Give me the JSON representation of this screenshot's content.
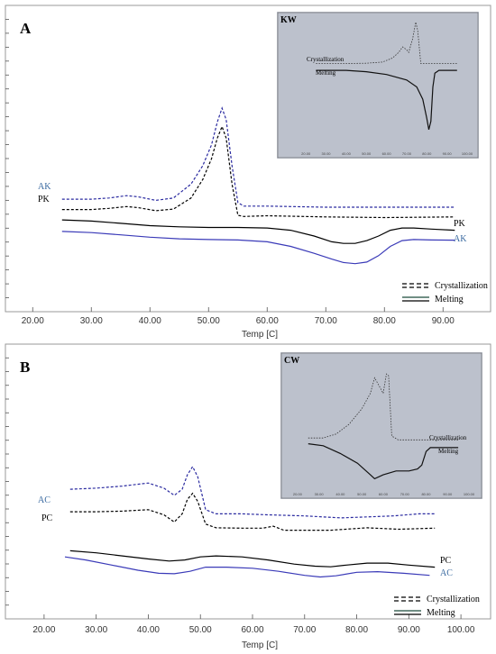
{
  "chart_data": [
    {
      "type": "line",
      "panel_label": "A",
      "xlabel": "Temp [C]",
      "xlim": [
        17.5,
        97.5
      ],
      "x_ticks": [
        "20.00",
        "30.00",
        "40.00",
        "50.00",
        "60.00",
        "70.00",
        "80.00",
        "90.00"
      ],
      "series": [
        {
          "name": "AK",
          "kind": "Crystallization",
          "color": "#2a2aa0",
          "dashed": true,
          "points": [
            [
              25,
              0.905
            ],
            [
              30,
              0.905
            ],
            [
              33,
              0.91
            ],
            [
              36,
              0.92
            ],
            [
              38,
              0.915
            ],
            [
              41,
              0.9
            ],
            [
              44,
              0.91
            ],
            [
              47,
              0.97
            ],
            [
              49,
              1.05
            ],
            [
              50.5,
              1.14
            ],
            [
              51.5,
              1.24
            ],
            [
              52.3,
              1.3
            ],
            [
              53,
              1.25
            ],
            [
              54,
              1.05
            ],
            [
              55,
              0.89
            ],
            [
              56,
              0.875
            ],
            [
              60,
              0.875
            ],
            [
              70,
              0.87
            ],
            [
              80,
              0.87
            ],
            [
              92,
              0.87
            ]
          ]
        },
        {
          "name": "PK",
          "kind": "Crystallization",
          "color": "#000000",
          "dashed": true,
          "points": [
            [
              25,
              0.86
            ],
            [
              30,
              0.86
            ],
            [
              33,
              0.865
            ],
            [
              36,
              0.873
            ],
            [
              38,
              0.868
            ],
            [
              41,
              0.855
            ],
            [
              44,
              0.862
            ],
            [
              47,
              0.91
            ],
            [
              49,
              0.99
            ],
            [
              50.5,
              1.08
            ],
            [
              51.5,
              1.17
            ],
            [
              52.3,
              1.22
            ],
            [
              53,
              1.17
            ],
            [
              54,
              0.97
            ],
            [
              55,
              0.835
            ],
            [
              56,
              0.83
            ],
            [
              60,
              0.833
            ],
            [
              70,
              0.828
            ],
            [
              80,
              0.825
            ],
            [
              92,
              0.828
            ]
          ]
        },
        {
          "name": "PK",
          "kind": "Melting",
          "color": "#000000",
          "dashed": false,
          "points": [
            [
              25,
              0.815
            ],
            [
              30,
              0.81
            ],
            [
              35,
              0.8
            ],
            [
              40,
              0.79
            ],
            [
              45,
              0.785
            ],
            [
              50,
              0.782
            ],
            [
              55,
              0.782
            ],
            [
              60,
              0.78
            ],
            [
              64,
              0.77
            ],
            [
              68,
              0.745
            ],
            [
              71,
              0.72
            ],
            [
              73,
              0.713
            ],
            [
              75,
              0.713
            ],
            [
              77,
              0.725
            ],
            [
              79,
              0.745
            ],
            [
              81,
              0.77
            ],
            [
              83,
              0.78
            ],
            [
              85,
              0.78
            ],
            [
              88,
              0.775
            ],
            [
              92,
              0.77
            ]
          ]
        },
        {
          "name": "AK",
          "kind": "Melting",
          "color": "#3a3ab8",
          "dashed": false,
          "points": [
            [
              25,
              0.765
            ],
            [
              30,
              0.76
            ],
            [
              35,
              0.75
            ],
            [
              40,
              0.74
            ],
            [
              45,
              0.733
            ],
            [
              50,
              0.73
            ],
            [
              55,
              0.728
            ],
            [
              60,
              0.72
            ],
            [
              64,
              0.7
            ],
            [
              68,
              0.67
            ],
            [
              71,
              0.645
            ],
            [
              73,
              0.63
            ],
            [
              75,
              0.625
            ],
            [
              77,
              0.632
            ],
            [
              79,
              0.66
            ],
            [
              81,
              0.7
            ],
            [
              83,
              0.725
            ],
            [
              85,
              0.73
            ],
            [
              88,
              0.728
            ],
            [
              92,
              0.727
            ]
          ]
        }
      ],
      "series_labels": [
        {
          "text": "AK",
          "color": "#3a6aa0"
        },
        {
          "text": "PK",
          "color": "#000000"
        },
        {
          "text": "PK",
          "color": "#000000"
        },
        {
          "text": "AK",
          "color": "#3a6aa0"
        }
      ],
      "legend": {
        "position": "bottom-right",
        "entries": [
          "Crystallization",
          "Melting"
        ]
      },
      "inset": {
        "title": "KW",
        "labels": [
          "Crystallization",
          "Melting"
        ],
        "x_ticks": [
          "20.00",
          "30.00",
          "40.00",
          "50.00",
          "60.00",
          "70.00",
          "80.00",
          "90.00",
          "100.00"
        ],
        "series": [
          {
            "kind": "Crystallization",
            "dashed": true,
            "points": [
              [
                25,
                0.62
              ],
              [
                40,
                0.62
              ],
              [
                50,
                0.622
              ],
              [
                58,
                0.63
              ],
              [
                63,
                0.66
              ],
              [
                66,
                0.7
              ],
              [
                68,
                0.74
              ],
              [
                70,
                0.72
              ],
              [
                71,
                0.7
              ],
              [
                73,
                0.8
              ],
              [
                74.5,
                0.92
              ],
              [
                75.5,
                0.86
              ],
              [
                77,
                0.62
              ],
              [
                80,
                0.62
              ],
              [
                95,
                0.62
              ]
            ]
          },
          {
            "kind": "Melting",
            "dashed": false,
            "points": [
              [
                25,
                0.57
              ],
              [
                40,
                0.57
              ],
              [
                50,
                0.56
              ],
              [
                60,
                0.54
              ],
              [
                70,
                0.5
              ],
              [
                75,
                0.45
              ],
              [
                78,
                0.36
              ],
              [
                80,
                0.22
              ],
              [
                81,
                0.14
              ],
              [
                82,
                0.2
              ],
              [
                83,
                0.45
              ],
              [
                84,
                0.55
              ],
              [
                86,
                0.57
              ],
              [
                95,
                0.57
              ]
            ]
          }
        ]
      }
    },
    {
      "type": "line",
      "panel_label": "B",
      "xlabel": "Temp [C]",
      "xlim": [
        15,
        105
      ],
      "x_ticks": [
        "20.00",
        "30.00",
        "40.00",
        "50.00",
        "60.00",
        "70.00",
        "80.00",
        "90.00",
        "100.00"
      ],
      "series": [
        {
          "name": "AC",
          "kind": "Crystallization",
          "color": "#2a2aa0",
          "dashed": true,
          "points": [
            [
              25,
              0.9
            ],
            [
              30,
              0.905
            ],
            [
              35,
              0.915
            ],
            [
              40,
              0.93
            ],
            [
              43,
              0.905
            ],
            [
              45,
              0.87
            ],
            [
              46.5,
              0.9
            ],
            [
              47.5,
              0.97
            ],
            [
              48.5,
              1.01
            ],
            [
              49.5,
              0.96
            ],
            [
              51,
              0.8
            ],
            [
              53,
              0.78
            ],
            [
              58,
              0.78
            ],
            [
              63,
              0.775
            ],
            [
              70,
              0.77
            ],
            [
              77,
              0.76
            ],
            [
              82,
              0.765
            ],
            [
              87,
              0.77
            ],
            [
              92,
              0.78
            ],
            [
              95,
              0.78
            ]
          ]
        },
        {
          "name": "PC",
          "kind": "Crystallization",
          "color": "#000000",
          "dashed": true,
          "points": [
            [
              25,
              0.79
            ],
            [
              30,
              0.79
            ],
            [
              35,
              0.793
            ],
            [
              40,
              0.8
            ],
            [
              43,
              0.775
            ],
            [
              45,
              0.74
            ],
            [
              46.5,
              0.78
            ],
            [
              47.5,
              0.85
            ],
            [
              48.5,
              0.88
            ],
            [
              49.5,
              0.84
            ],
            [
              51,
              0.73
            ],
            [
              53,
              0.712
            ],
            [
              58,
              0.71
            ],
            [
              62,
              0.71
            ],
            [
              64,
              0.72
            ],
            [
              66,
              0.7
            ],
            [
              70,
              0.7
            ],
            [
              75,
              0.7
            ],
            [
              82,
              0.712
            ],
            [
              88,
              0.705
            ],
            [
              95,
              0.71
            ]
          ]
        },
        {
          "name": "PC",
          "kind": "Melting",
          "color": "#000000",
          "dashed": false,
          "points": [
            [
              25,
              0.6
            ],
            [
              30,
              0.59
            ],
            [
              35,
              0.575
            ],
            [
              40,
              0.56
            ],
            [
              44,
              0.55
            ],
            [
              47,
              0.555
            ],
            [
              50,
              0.57
            ],
            [
              53,
              0.575
            ],
            [
              58,
              0.57
            ],
            [
              63,
              0.555
            ],
            [
              68,
              0.535
            ],
            [
              72,
              0.525
            ],
            [
              75,
              0.522
            ],
            [
              78,
              0.53
            ],
            [
              82,
              0.54
            ],
            [
              86,
              0.54
            ],
            [
              90,
              0.53
            ],
            [
              95,
              0.52
            ]
          ]
        },
        {
          "name": "AC",
          "kind": "Melting",
          "color": "#3a3ab8",
          "dashed": false,
          "points": [
            [
              24,
              0.57
            ],
            [
              28,
              0.555
            ],
            [
              33,
              0.53
            ],
            [
              38,
              0.505
            ],
            [
              42,
              0.49
            ],
            [
              45,
              0.488
            ],
            [
              48,
              0.5
            ],
            [
              51,
              0.52
            ],
            [
              55,
              0.52
            ],
            [
              60,
              0.515
            ],
            [
              65,
              0.5
            ],
            [
              70,
              0.48
            ],
            [
              73,
              0.472
            ],
            [
              76,
              0.478
            ],
            [
              80,
              0.495
            ],
            [
              84,
              0.498
            ],
            [
              89,
              0.49
            ],
            [
              94,
              0.48
            ]
          ]
        }
      ],
      "series_labels": [
        {
          "text": "AC",
          "color": "#3a6aa0"
        },
        {
          "text": "PC",
          "color": "#000000"
        },
        {
          "text": "PC",
          "color": "#000000"
        },
        {
          "text": "AC",
          "color": "#3a6aa0"
        }
      ],
      "legend": {
        "position": "bottom-right",
        "entries": [
          "Crystallization",
          "Melting"
        ]
      },
      "inset": {
        "title": "CW",
        "labels": [
          "Crystallization",
          "Melting"
        ],
        "x_ticks": [
          "20.00",
          "30.00",
          "40.00",
          "50.00",
          "60.00",
          "70.00",
          "80.00",
          "90.00",
          "100.00"
        ],
        "series": [
          {
            "kind": "Crystallization",
            "dashed": true,
            "points": [
              [
                25,
                0.55
              ],
              [
                32,
                0.55
              ],
              [
                38,
                0.57
              ],
              [
                44,
                0.62
              ],
              [
                50,
                0.7
              ],
              [
                54,
                0.78
              ],
              [
                56,
                0.86
              ],
              [
                58,
                0.82
              ],
              [
                60,
                0.78
              ],
              [
                61.5,
                0.88
              ],
              [
                62.5,
                0.87
              ],
              [
                64,
                0.56
              ],
              [
                67,
                0.54
              ],
              [
                75,
                0.54
              ],
              [
                90,
                0.54
              ],
              [
                95,
                0.54
              ]
            ]
          },
          {
            "kind": "Melting",
            "dashed": false,
            "points": [
              [
                25,
                0.52
              ],
              [
                32,
                0.51
              ],
              [
                40,
                0.47
              ],
              [
                48,
                0.42
              ],
              [
                54,
                0.36
              ],
              [
                56,
                0.34
              ],
              [
                60,
                0.36
              ],
              [
                66,
                0.38
              ],
              [
                72,
                0.38
              ],
              [
                76,
                0.39
              ],
              [
                78,
                0.41
              ],
              [
                80,
                0.48
              ],
              [
                82,
                0.5
              ],
              [
                90,
                0.5
              ],
              [
                95,
                0.5
              ]
            ]
          }
        ]
      }
    }
  ]
}
